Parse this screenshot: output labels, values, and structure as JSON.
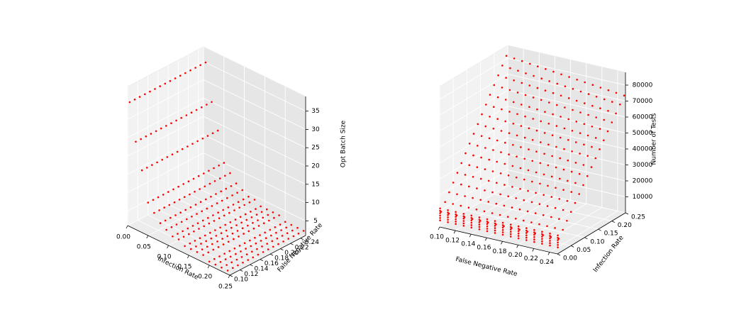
{
  "colors": {
    "marker": "#ff0000",
    "pane_left": "#f2f2f2",
    "pane_right": "#e6e6e6",
    "pane_floor": "#ececec"
  },
  "chart_data": [
    {
      "type": "scatter",
      "title": "",
      "xlabel": "Infection Rate",
      "ylabel": "False Negative Rate",
      "zlabel": "Opt Batch Size",
      "xlim": [
        0,
        0.25
      ],
      "ylim": [
        0.1,
        0.25
      ],
      "zlim": [
        1,
        39
      ],
      "x_ticks": [
        "0.00",
        "0.05",
        "0.10",
        "0.15",
        "0.20",
        "0.25"
      ],
      "y_ticks": [
        "0.10",
        "0.12",
        "0.14",
        "0.16",
        "0.18",
        "0.20",
        "0.22",
        "0.24"
      ],
      "z_ticks": [
        "5",
        "10",
        "15",
        "20",
        "25",
        "30",
        "35"
      ],
      "infection_rates": [
        0.005,
        0.02,
        0.035,
        0.05,
        0.065,
        0.08,
        0.095,
        0.11,
        0.125,
        0.14,
        0.155,
        0.17,
        0.185,
        0.2,
        0.215,
        0.23,
        0.245
      ],
      "false_negative_rates": [
        0.1,
        0.11,
        0.12,
        0.13,
        0.14,
        0.15,
        0.16,
        0.17,
        0.18,
        0.19,
        0.2,
        0.21,
        0.22,
        0.23,
        0.24,
        0.25
      ],
      "opt_batch_size_by_infection_rate": [
        35,
        25,
        18,
        10,
        8,
        6,
        5,
        4,
        4,
        3,
        3,
        3,
        3,
        2,
        2,
        2,
        2
      ],
      "grid": true
    },
    {
      "type": "scatter",
      "title": "",
      "xlabel": "False Negative Rate",
      "ylabel": "Infection Rate",
      "zlabel": "Number of Tests",
      "xlim": [
        0.1,
        0.25
      ],
      "ylim": [
        0,
        0.25
      ],
      "zlim": [
        0,
        88000
      ],
      "x_ticks": [
        "0.10",
        "0.12",
        "0.14",
        "0.16",
        "0.18",
        "0.20",
        "0.22",
        "0.24"
      ],
      "y_ticks": [
        "0.00",
        "0.05",
        "0.10",
        "0.15",
        "0.20",
        "0.25"
      ],
      "z_ticks": [
        "10000",
        "20000",
        "30000",
        "40000",
        "50000",
        "60000",
        "70000",
        "80000"
      ],
      "false_negative_rates": [
        0.1,
        0.11,
        0.12,
        0.13,
        0.14,
        0.15,
        0.16,
        0.17,
        0.18,
        0.19,
        0.2,
        0.21,
        0.22,
        0.23,
        0.24,
        0.25
      ],
      "infection_rates": [
        0.005,
        0.02,
        0.035,
        0.05,
        0.065,
        0.08,
        0.095,
        0.11,
        0.125,
        0.14,
        0.155,
        0.17,
        0.185,
        0.2,
        0.215,
        0.23,
        0.245
      ],
      "tests_at_min_infection_rate": [
        4000,
        5500,
        7000,
        8500,
        10000,
        11500
      ],
      "tests_at_max_infection_rate_low_fnr": 82000,
      "tests_at_max_infection_rate_high_fnr": 74000,
      "grid": true
    }
  ]
}
